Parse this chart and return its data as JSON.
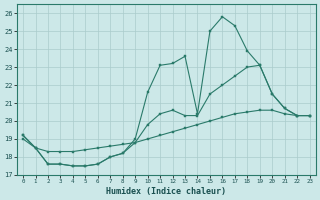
{
  "xlabel": "Humidex (Indice chaleur)",
  "background_color": "#cce8e8",
  "grid_color": "#aacccc",
  "line_color": "#2a7a6a",
  "xlim": [
    -0.5,
    23.5
  ],
  "ylim": [
    17,
    26.5
  ],
  "xticks": [
    0,
    1,
    2,
    3,
    4,
    5,
    6,
    7,
    8,
    9,
    10,
    11,
    12,
    13,
    14,
    15,
    16,
    17,
    18,
    19,
    20,
    21,
    22,
    23
  ],
  "yticks": [
    17,
    18,
    19,
    20,
    21,
    22,
    23,
    24,
    25,
    26
  ],
  "line1_x": [
    0,
    1,
    2,
    3,
    4,
    5,
    6,
    7,
    8,
    9,
    10,
    11,
    12,
    13,
    14,
    15,
    16,
    17,
    18,
    19,
    20,
    21,
    22,
    23
  ],
  "line1_y": [
    19.2,
    18.5,
    17.6,
    17.6,
    17.5,
    17.5,
    17.6,
    18.0,
    18.2,
    19.0,
    21.6,
    23.1,
    23.2,
    23.6,
    20.4,
    25.0,
    25.8,
    25.3,
    23.9,
    23.1,
    21.5,
    20.7,
    20.3,
    20.3
  ],
  "line2_x": [
    0,
    1,
    2,
    3,
    4,
    5,
    6,
    7,
    8,
    9,
    10,
    11,
    12,
    13,
    14,
    15,
    16,
    17,
    18,
    19,
    20,
    21,
    22,
    23
  ],
  "line2_y": [
    19.2,
    18.5,
    17.6,
    17.6,
    17.5,
    17.5,
    17.6,
    18.0,
    18.2,
    18.8,
    19.8,
    20.4,
    20.6,
    20.3,
    20.3,
    21.5,
    22.0,
    22.5,
    23.0,
    23.1,
    21.5,
    20.7,
    20.3,
    20.3
  ],
  "line3_x": [
    0,
    1,
    2,
    3,
    4,
    5,
    6,
    7,
    8,
    9,
    10,
    11,
    12,
    13,
    14,
    15,
    16,
    17,
    18,
    19,
    20,
    21,
    22,
    23
  ],
  "line3_y": [
    19.0,
    18.5,
    18.3,
    18.3,
    18.3,
    18.4,
    18.5,
    18.6,
    18.7,
    18.8,
    19.0,
    19.2,
    19.4,
    19.6,
    19.8,
    20.0,
    20.2,
    20.4,
    20.5,
    20.6,
    20.6,
    20.4,
    20.3,
    20.3
  ]
}
